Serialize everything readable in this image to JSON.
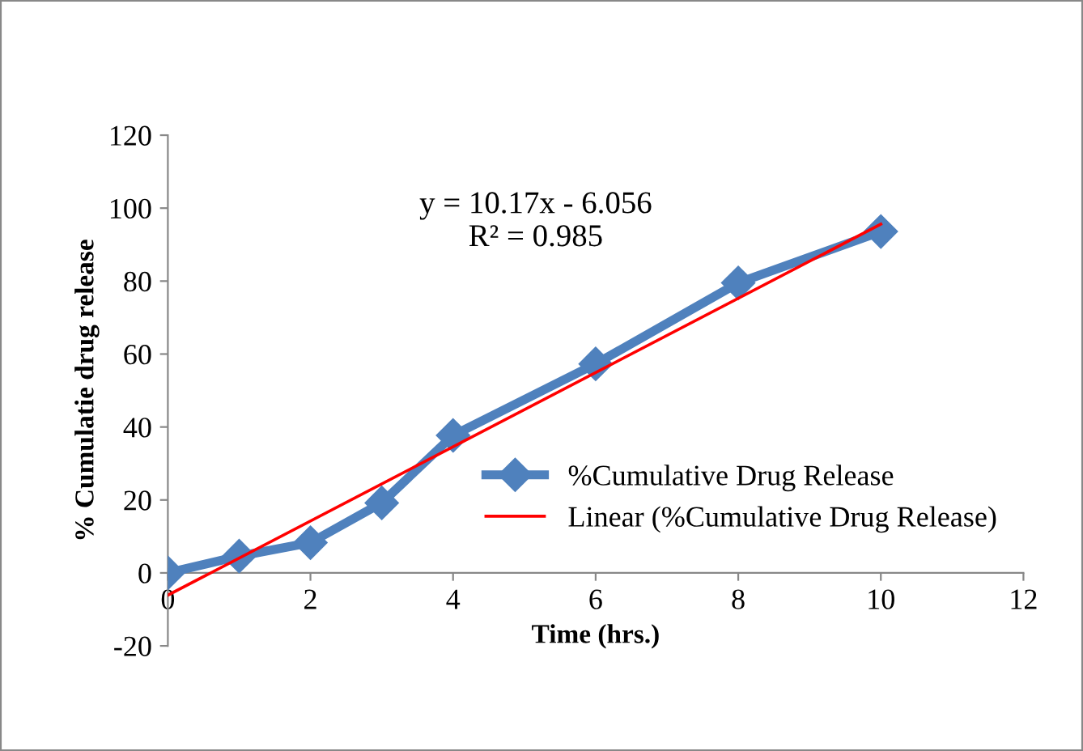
{
  "chart_data": {
    "type": "line",
    "xlabel": "Time (hrs.)",
    "ylabel": "% Cumulatie drug release",
    "x": [
      0,
      1,
      2,
      3,
      4,
      6,
      8,
      10
    ],
    "series": [
      {
        "name": "%Cumulative Drug Release",
        "color": "#4f81bd",
        "values": [
          0,
          4.6,
          8.3,
          19.2,
          37.7,
          57.3,
          79.5,
          93.6
        ],
        "marker": "diamond"
      },
      {
        "name": "Linear (%Cumulative Drug Release)",
        "color": "#ff0000",
        "x": [
          0,
          10
        ],
        "values": [
          -6.1,
          95.6
        ],
        "marker": "none"
      }
    ],
    "xlim": [
      0,
      12
    ],
    "xticks": [
      0,
      2,
      4,
      6,
      8,
      10,
      12
    ],
    "ylim": [
      -20,
      120
    ],
    "yticks": [
      -20,
      0,
      20,
      40,
      60,
      80,
      100,
      120
    ],
    "annotations": [
      "y = 10.17x - 6.056\nR² = 0.985"
    ],
    "grid": false,
    "legend": "lower right"
  }
}
